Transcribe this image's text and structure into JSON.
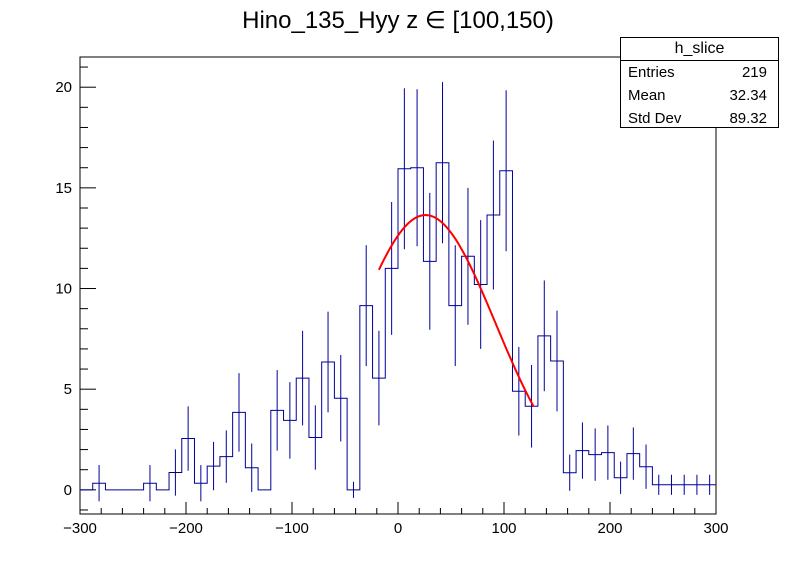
{
  "chart_data": {
    "type": "histogram",
    "title": "Hino_135_Hyy z  ∈ [100,150)",
    "xlabel": "",
    "ylabel": "",
    "xlim": [
      -300,
      300
    ],
    "ylim": [
      -1.2,
      21.5
    ],
    "x_ticks": [
      -300,
      -200,
      -100,
      0,
      100,
      200,
      300
    ],
    "x_tick_labels": [
      "−300",
      "−200",
      "−100",
      "0",
      "100",
      "200",
      "300"
    ],
    "y_ticks": [
      0,
      5,
      10,
      15,
      20
    ],
    "y_tick_labels": [
      "0",
      "5",
      "10",
      "15",
      "20"
    ],
    "bin_width": 12,
    "bins": [
      {
        "x": -294,
        "y": 0.0,
        "err": 0.0
      },
      {
        "x": -282,
        "y": 0.33,
        "err": 0.9
      },
      {
        "x": -270,
        "y": 0.0,
        "err": 0.0
      },
      {
        "x": -258,
        "y": 0.0,
        "err": 0.0
      },
      {
        "x": -246,
        "y": 0.0,
        "err": 0.0
      },
      {
        "x": -234,
        "y": 0.33,
        "err": 0.9
      },
      {
        "x": -222,
        "y": 0.0,
        "err": 0.0
      },
      {
        "x": -210,
        "y": 0.86,
        "err": 1.15
      },
      {
        "x": -198,
        "y": 2.55,
        "err": 1.6
      },
      {
        "x": -186,
        "y": 0.33,
        "err": 0.9
      },
      {
        "x": -174,
        "y": 1.18,
        "err": 1.2
      },
      {
        "x": -162,
        "y": 1.65,
        "err": 1.3
      },
      {
        "x": -150,
        "y": 3.85,
        "err": 1.95
      },
      {
        "x": -138,
        "y": 1.1,
        "err": 1.2
      },
      {
        "x": -126,
        "y": 0.0,
        "err": 0.0
      },
      {
        "x": -114,
        "y": 3.95,
        "err": 2.0
      },
      {
        "x": -102,
        "y": 3.45,
        "err": 1.9
      },
      {
        "x": -90,
        "y": 5.55,
        "err": 2.35
      },
      {
        "x": -78,
        "y": 2.6,
        "err": 1.6
      },
      {
        "x": -66,
        "y": 6.35,
        "err": 2.5
      },
      {
        "x": -54,
        "y": 4.55,
        "err": 2.15
      },
      {
        "x": -42,
        "y": 0.0,
        "err": 0.4
      },
      {
        "x": -30,
        "y": 9.15,
        "err": 3.0
      },
      {
        "x": -18,
        "y": 5.55,
        "err": 2.35
      },
      {
        "x": -6,
        "y": 11.0,
        "err": 3.3
      },
      {
        "x": 6,
        "y": 15.95,
        "err": 4.0
      },
      {
        "x": 18,
        "y": 16.0,
        "err": 3.9
      },
      {
        "x": 30,
        "y": 11.35,
        "err": 3.4
      },
      {
        "x": 42,
        "y": 16.25,
        "err": 4.0
      },
      {
        "x": 54,
        "y": 9.15,
        "err": 3.0
      },
      {
        "x": 66,
        "y": 11.6,
        "err": 3.4
      },
      {
        "x": 78,
        "y": 10.2,
        "err": 3.2
      },
      {
        "x": 90,
        "y": 13.65,
        "err": 3.7
      },
      {
        "x": 102,
        "y": 15.85,
        "err": 4.0
      },
      {
        "x": 114,
        "y": 4.9,
        "err": 2.2
      },
      {
        "x": 126,
        "y": 4.15,
        "err": 2.05
      },
      {
        "x": 138,
        "y": 7.65,
        "err": 2.75
      },
      {
        "x": 150,
        "y": 6.4,
        "err": 2.5
      },
      {
        "x": 162,
        "y": 0.85,
        "err": 0.9
      },
      {
        "x": 174,
        "y": 1.95,
        "err": 1.4
      },
      {
        "x": 186,
        "y": 1.75,
        "err": 1.3
      },
      {
        "x": 198,
        "y": 1.85,
        "err": 1.35
      },
      {
        "x": 210,
        "y": 0.6,
        "err": 0.8
      },
      {
        "x": 222,
        "y": 1.8,
        "err": 1.3
      },
      {
        "x": 234,
        "y": 1.15,
        "err": 1.1
      },
      {
        "x": 246,
        "y": 0.25,
        "err": 0.5
      },
      {
        "x": 258,
        "y": 0.25,
        "err": 0.5
      },
      {
        "x": 270,
        "y": 0.25,
        "err": 0.5
      },
      {
        "x": 282,
        "y": 0.25,
        "err": 0.5
      },
      {
        "x": 294,
        "y": 0.25,
        "err": 0.5
      }
    ],
    "fit": {
      "type": "gaussian",
      "color": "#ff0000",
      "x_range": [
        -18,
        128
      ],
      "amplitude": 13.65,
      "mean": 26,
      "sigma": 66
    },
    "histogram_color": "#000099",
    "stats_box": {
      "title": "h_slice",
      "entries_label": "Entries",
      "entries_value": "219",
      "mean_label": "Mean",
      "mean_value": "32.34",
      "stddev_label": "Std Dev",
      "stddev_value": "89.32"
    }
  }
}
